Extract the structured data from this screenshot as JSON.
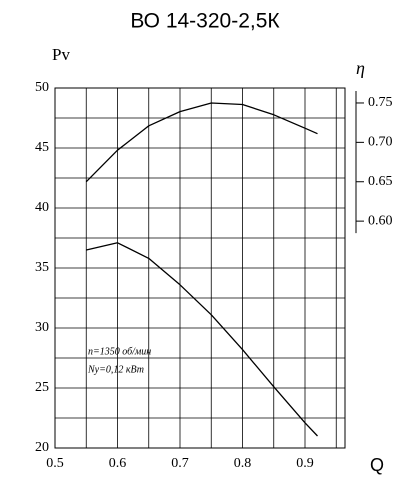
{
  "chart_data": {
    "type": "line",
    "title": "ВО 14-320-2,5К",
    "y_label": "Pv",
    "y2_label": "η",
    "x_label": "Q",
    "x": [
      0.55,
      0.6,
      0.65,
      0.7,
      0.75,
      0.8,
      0.85,
      0.9,
      0.92
    ],
    "series": [
      {
        "color": "#000000",
        "values": [
          36.5,
          37.1,
          35.8,
          33.6,
          31.1,
          28.2,
          25.1,
          22.1,
          21.0
        ]
      },
      {
        "color": "#000000",
        "axis": "y2",
        "values": [
          0.65,
          0.69,
          0.721,
          0.739,
          0.75,
          0.748,
          0.735,
          0.718,
          0.711
        ]
      }
    ],
    "xlim": [
      0.5,
      0.964
    ],
    "xticks": [
      0.5,
      0.6,
      0.7,
      0.8,
      0.9
    ],
    "x_minor_grid": [
      0.55,
      0.65,
      0.75,
      0.85,
      0.95
    ],
    "ylim": [
      20,
      50
    ],
    "yticks": [
      20,
      25,
      30,
      35,
      40,
      45,
      50
    ],
    "y_minor_grid": [
      22.5,
      27.5,
      32.5,
      37.5,
      42.5,
      47.5
    ],
    "y2lim": [
      0.312,
      0.769
    ],
    "y2ticks": [
      {
        "value": 0.6,
        "label": "0.60"
      },
      0.65,
      {
        "value": 0.7,
        "label": "0.70"
      },
      0.75
    ],
    "grid": true,
    "annotations": [
      "n=1350 об/мин",
      "Nу=0,12 кВт"
    ]
  }
}
